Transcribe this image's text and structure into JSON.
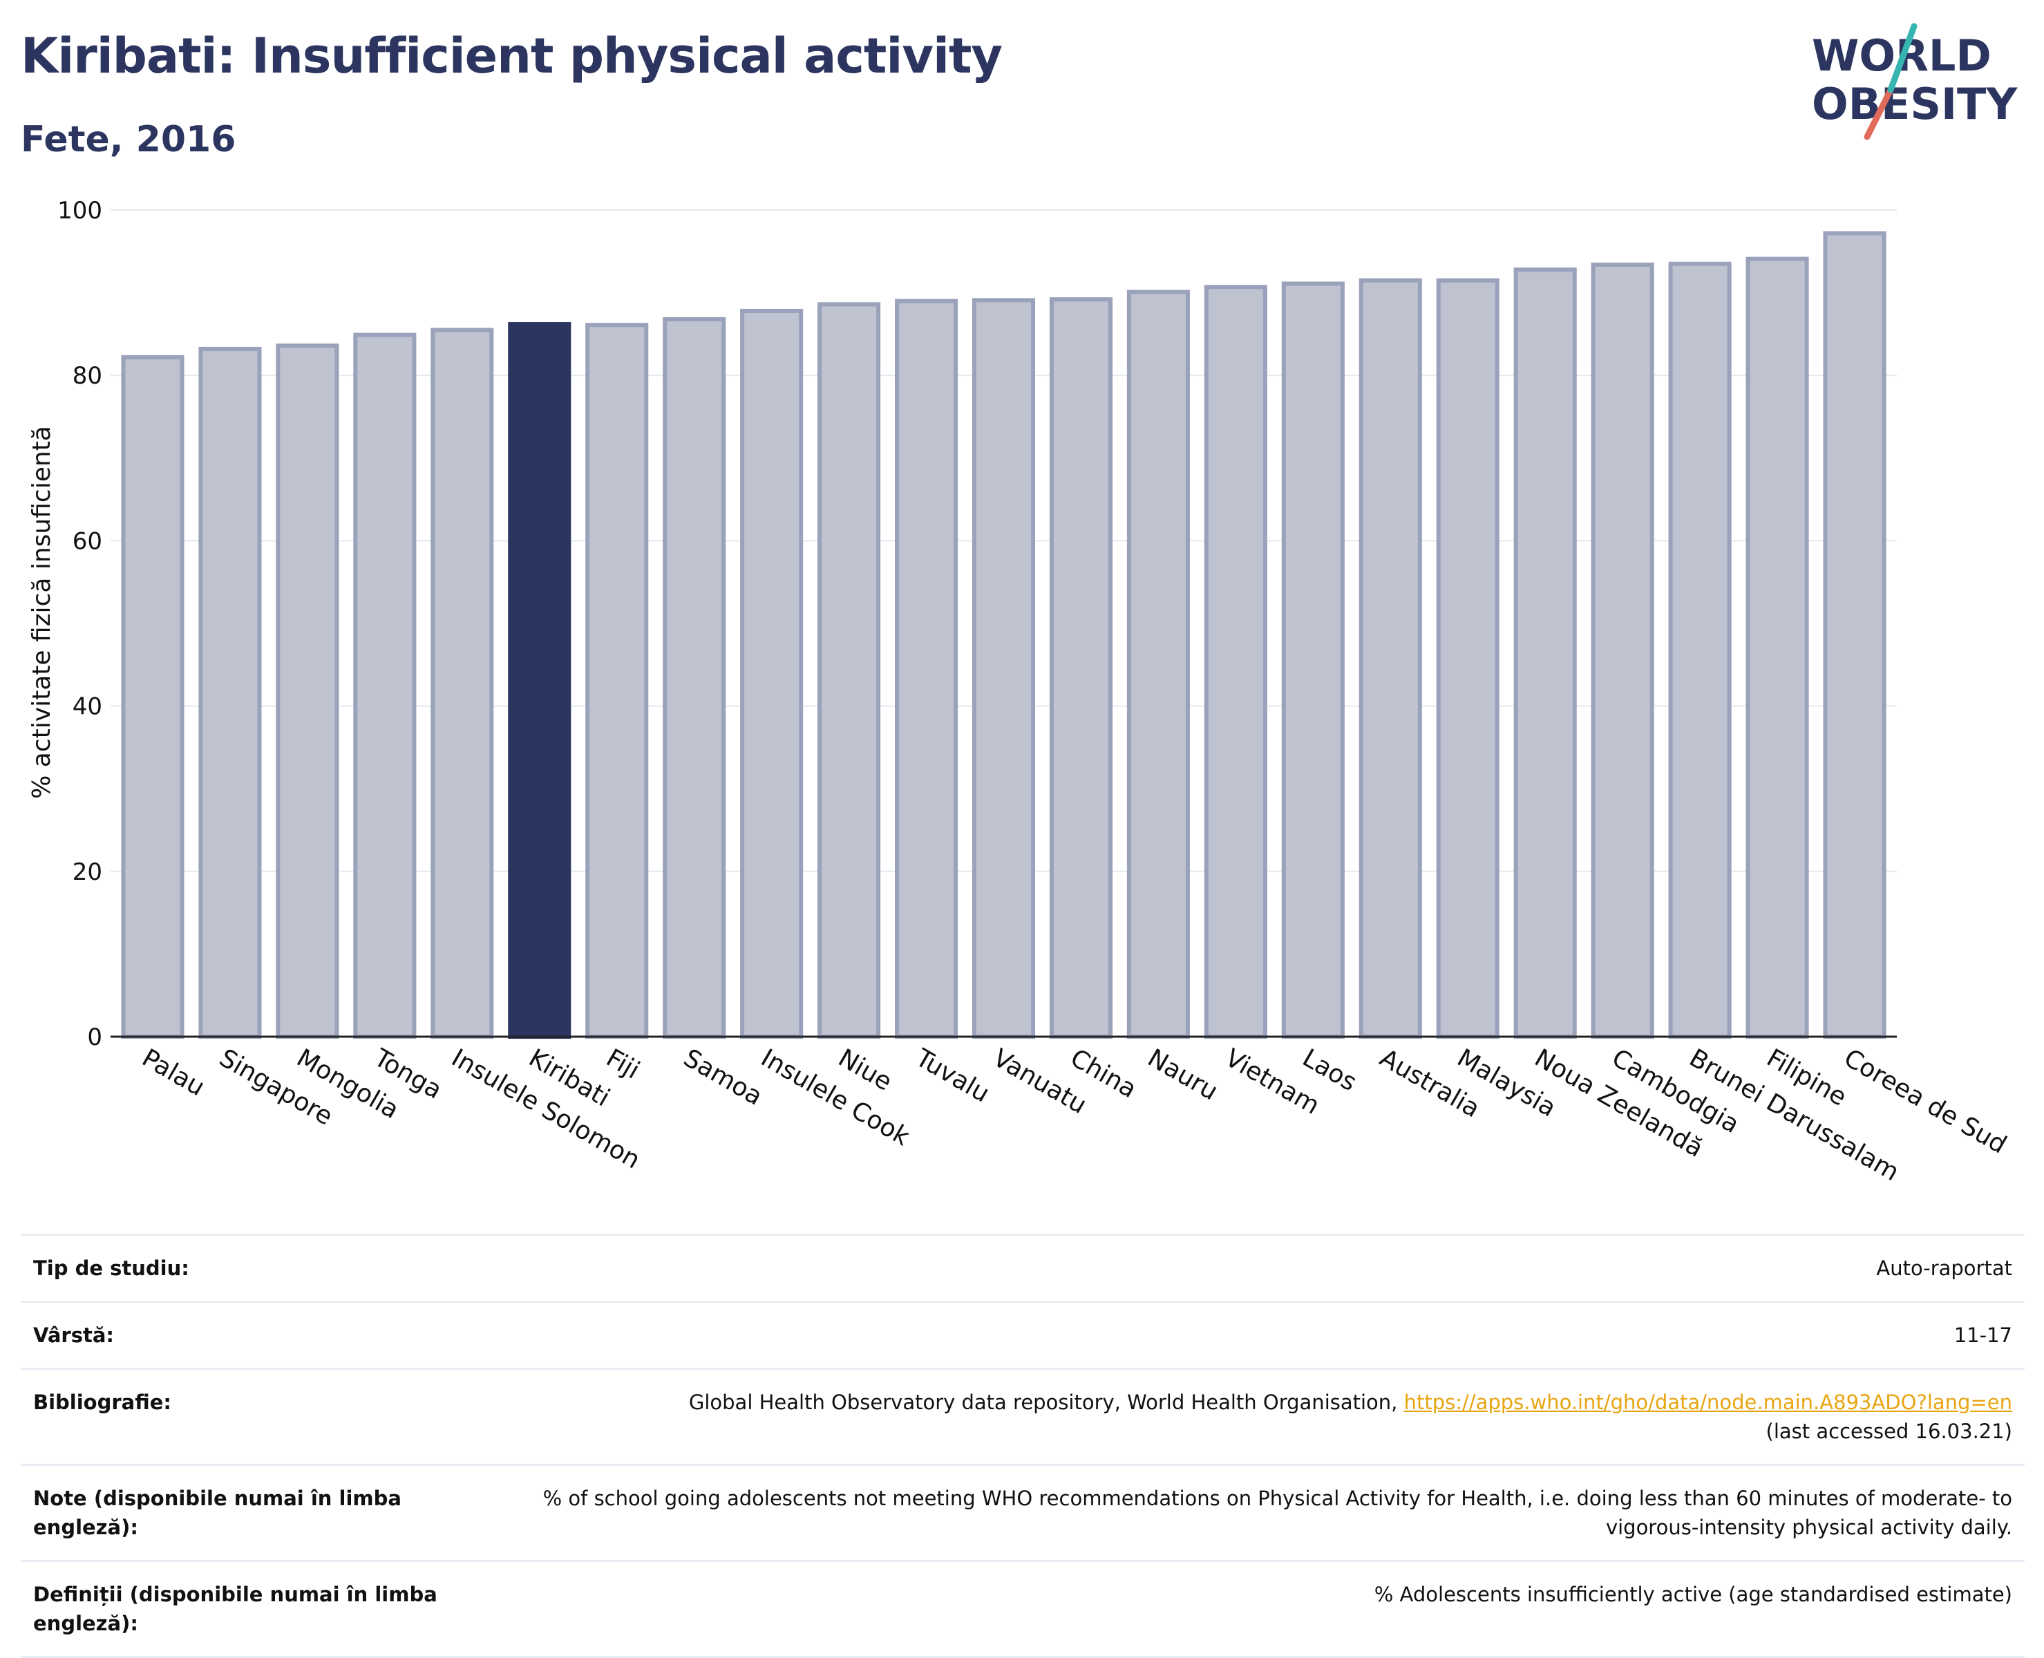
{
  "header": {
    "title": "Kiribati: Insufficient physical activity",
    "subtitle": "Fete, 2016"
  },
  "logo": {
    "line1": "WORLD",
    "line2": "OBESITY"
  },
  "colors": {
    "highlight": "#2b3560",
    "bar_fill": "#bfc3d0",
    "bar_stroke": "#9aa1ba",
    "link": "#e8a512"
  },
  "chart_data": {
    "type": "bar",
    "ylabel": "% activitate fizică insuficientă",
    "ylim": [
      0,
      100
    ],
    "yticks": [
      0,
      20,
      40,
      60,
      80,
      100
    ],
    "grid": true,
    "highlight": "Kiribati",
    "categories": [
      "Palau",
      "Singapore",
      "Mongolia",
      "Tonga",
      "Insulele Solomon",
      "Kiribati",
      "Fiji",
      "Samoa",
      "Insulele Cook",
      "Niue",
      "Tuvalu",
      "Vanuatu",
      "China",
      "Nauru",
      "Vietnam",
      "Laos",
      "Australia",
      "Malaysia",
      "Noua Zeelandă",
      "Cambodgia",
      "Brunei Darussalam",
      "Filipine",
      "Coreea de Sud"
    ],
    "values": [
      82.2,
      83.2,
      83.6,
      84.9,
      85.5,
      86.2,
      86.1,
      86.8,
      87.8,
      88.6,
      89.0,
      89.1,
      89.2,
      90.1,
      90.7,
      91.1,
      91.5,
      91.5,
      92.8,
      93.4,
      93.5,
      94.1,
      97.2
    ]
  },
  "info": [
    {
      "key": "Tip de studiu:",
      "value": "Auto-raportat"
    },
    {
      "key": "Vârstă:",
      "value": "11-17"
    },
    {
      "key": "Bibliografie:",
      "value": "Global Health Observatory data repository, World Health Organisation, ",
      "link": "https://apps.who.int/gho/data/node.main.A893ADO?lang=en",
      "suffix": "(last accessed 16.03.21)"
    },
    {
      "key": "Note (disponibile numai în limba engleză):",
      "value": "% of school going adolescents not meeting WHO recommendations on Physical Activity for Health, i.e. doing less than 60 minutes of moderate- to vigorous-intensity physical activity daily."
    },
    {
      "key": "Definiții (disponibile numai în limba engleză):",
      "value": "% Adolescents insufficiently active (age standardised estimate)"
    }
  ]
}
